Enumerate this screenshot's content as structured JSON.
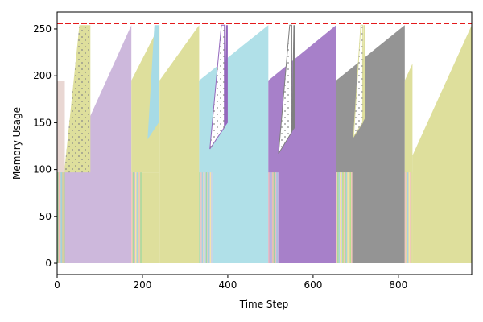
{
  "chart_data": {
    "type": "area",
    "title": "",
    "xlabel": "Time Step",
    "ylabel": "Memory Usage",
    "xlim": [
      0,
      972
    ],
    "ylim": [
      -12,
      268
    ],
    "xticks": [
      0,
      200,
      400,
      600,
      800
    ],
    "yticks": [
      0,
      50,
      100,
      150,
      200,
      250
    ],
    "limit_line": {
      "y": 256,
      "color": "#e31a1c",
      "style": "dashed"
    },
    "segments": [
      {
        "name": "block-1",
        "color": "#cdb8dc",
        "polygon": [
          [
            18,
            97
          ],
          [
            174,
            254
          ],
          [
            174,
            0
          ],
          [
            18,
            0
          ]
        ]
      },
      {
        "name": "block-2",
        "color": "#dedf9c",
        "polygon": [
          [
            174,
            195
          ],
          [
            240,
            254
          ],
          [
            240,
            97
          ],
          [
            174,
            97
          ]
        ]
      },
      {
        "name": "block-3",
        "color": "#dedf9c",
        "polygon": [
          [
            240,
            195
          ],
          [
            333,
            254
          ],
          [
            333,
            0
          ],
          [
            240,
            0
          ]
        ]
      },
      {
        "name": "block-4",
        "color": "#dedf9c",
        "polygon": [
          [
            174,
            97
          ],
          [
            240,
            97
          ],
          [
            240,
            0
          ],
          [
            174,
            0
          ]
        ]
      },
      {
        "name": "block-5",
        "color": "#b0e0e8",
        "polygon": [
          [
            333,
            195
          ],
          [
            495,
            254
          ],
          [
            495,
            0
          ],
          [
            333,
            0
          ]
        ]
      },
      {
        "name": "block-6",
        "color": "#a780c9",
        "polygon": [
          [
            495,
            195
          ],
          [
            654,
            254
          ],
          [
            654,
            0
          ],
          [
            495,
            0
          ]
        ]
      },
      {
        "name": "block-7",
        "color": "#949494",
        "polygon": [
          [
            654,
            195
          ],
          [
            815,
            254
          ],
          [
            815,
            0
          ],
          [
            654,
            0
          ]
        ]
      },
      {
        "name": "block-8",
        "color": "#dedf9c",
        "polygon": [
          [
            654,
            97
          ],
          [
            692,
            97
          ],
          [
            692,
            0
          ],
          [
            654,
            0
          ]
        ]
      },
      {
        "name": "block-9",
        "color": "#dedf9c",
        "polygon": [
          [
            815,
            195
          ],
          [
            833,
            213
          ],
          [
            833,
            0
          ],
          [
            815,
            0
          ]
        ]
      },
      {
        "name": "block-10",
        "color": "#dedf9c",
        "polygon": [
          [
            833,
            115
          ],
          [
            972,
            254
          ],
          [
            972,
            0
          ],
          [
            833,
            0
          ]
        ]
      },
      {
        "name": "block-11",
        "color": "#e9d7d3",
        "polygon": [
          [
            0,
            195
          ],
          [
            18,
            195
          ],
          [
            18,
            97
          ],
          [
            0,
            97
          ]
        ]
      },
      {
        "name": "block-12",
        "color": "#9dd9a0",
        "polygon": [
          [
            0,
            97
          ],
          [
            18,
            97
          ],
          [
            18,
            0
          ],
          [
            0,
            0
          ]
        ]
      },
      {
        "name": "peak-1",
        "color": "#dedf9c",
        "polygon": [
          [
            18,
            103
          ],
          [
            52,
            254
          ],
          [
            74,
            254
          ],
          [
            74,
            97
          ],
          [
            18,
            97
          ]
        ],
        "hatched": true
      },
      {
        "name": "peak-2",
        "color": "#dedf9c",
        "polygon": [
          [
            74,
            254
          ],
          [
            78,
            254
          ],
          [
            78,
            97
          ],
          [
            74,
            97
          ]
        ]
      },
      {
        "name": "peak-3",
        "color": "#a7dbe6",
        "polygon": [
          [
            212,
            132
          ],
          [
            228,
            254
          ],
          [
            238,
            254
          ],
          [
            238,
            150
          ]
        ]
      },
      {
        "name": "peak-4",
        "color": "#ffffff",
        "polygon": [
          [
            358,
            122
          ],
          [
            385,
            254
          ],
          [
            392,
            254
          ],
          [
            392,
            145
          ]
        ],
        "outline": "#9467bd",
        "hatched": true
      },
      {
        "name": "peak-5",
        "color": "#9467bd",
        "polygon": [
          [
            392,
            145
          ],
          [
            396,
            254
          ],
          [
            400,
            254
          ],
          [
            400,
            150
          ]
        ]
      },
      {
        "name": "peak-6",
        "color": "#ffffff",
        "polygon": [
          [
            519,
            117
          ],
          [
            545,
            254
          ],
          [
            550,
            254
          ],
          [
            550,
            140
          ]
        ],
        "outline": "#7f7f7f",
        "hatched": true
      },
      {
        "name": "peak-7",
        "color": "#7f7f7f",
        "polygon": [
          [
            550,
            140
          ],
          [
            554,
            254
          ],
          [
            558,
            254
          ],
          [
            558,
            145
          ]
        ]
      },
      {
        "name": "peak-8",
        "color": "#ffffff",
        "polygon": [
          [
            695,
            135
          ],
          [
            712,
            254
          ],
          [
            716,
            254
          ],
          [
            716,
            150
          ]
        ],
        "outline": "#dedf9c",
        "hatched": true
      },
      {
        "name": "peak-9",
        "color": "#dedf9c",
        "polygon": [
          [
            716,
            150
          ],
          [
            718,
            254
          ],
          [
            722,
            254
          ],
          [
            722,
            155
          ]
        ]
      }
    ],
    "stripes": [
      {
        "range": [
          0,
          18
        ],
        "colors": [
          "#9dd9a0",
          "#ffb3b3",
          "#d4cfe6",
          "#a6cee3",
          "#f1c9a0",
          "#b2df8a"
        ]
      },
      {
        "range": [
          174,
          198
        ],
        "colors": [
          "#f4c2c2",
          "#9dd9a0",
          "#c9b6e0",
          "#fde2a6",
          "#a6cee3",
          "#dedf9c"
        ]
      },
      {
        "range": [
          333,
          364
        ],
        "colors": [
          "#9dd9a0",
          "#f4c2c2",
          "#a6cee3",
          "#fde2a6",
          "#d4cfe6"
        ]
      },
      {
        "range": [
          495,
          520
        ],
        "colors": [
          "#f4c2c2",
          "#b0e0e8",
          "#c9b6e0",
          "#fde2a6",
          "#9dd9a0"
        ]
      },
      {
        "range": [
          654,
          692
        ],
        "colors": [
          "#f4c2c2",
          "#9dd9a0",
          "#a6cee3",
          "#fde2a6",
          "#d4cfe6",
          "#b2df8a"
        ]
      },
      {
        "range": [
          815,
          833
        ],
        "colors": [
          "#f4c2c2",
          "#dedf9c",
          "#a6cee3",
          "#fde2a6"
        ]
      }
    ]
  }
}
